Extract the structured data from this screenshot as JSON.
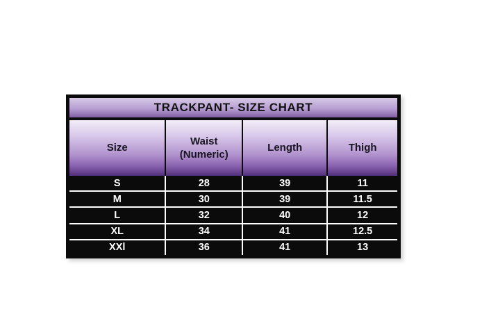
{
  "chart_data": {
    "type": "table",
    "title": "TRACKPANT- SIZE CHART",
    "columns": [
      "Size",
      "Waist\n(Numeric)",
      "Length",
      "Thigh"
    ],
    "rows": [
      [
        "S",
        "28",
        "39",
        "11"
      ],
      [
        "M",
        "30",
        "39",
        "11.5"
      ],
      [
        "L",
        "32",
        "40",
        "12"
      ],
      [
        "XL",
        "34",
        "41",
        "12.5"
      ],
      [
        "XXl",
        "36",
        "41",
        "13"
      ]
    ]
  },
  "colors": {
    "title_gradient_top": "#d6c8e6",
    "title_gradient_bottom": "#7f5ea3",
    "header_gradient_top": "#f3eef8",
    "header_gradient_bottom": "#53307c",
    "row_background": "#0b0b0b",
    "row_text": "#ffffff",
    "outer_border": "#0b0b0b",
    "grid_line": "#ffffff",
    "page_background": "#ffffff"
  }
}
